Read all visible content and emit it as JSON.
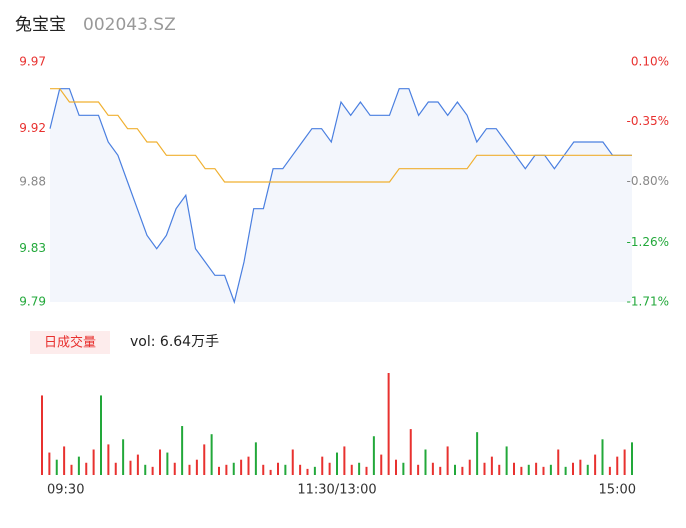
{
  "chart_data": [
    {
      "type": "line",
      "title": "兔宝宝",
      "subtitle": "002043.SZ",
      "x": [
        0,
        4,
        8,
        12,
        16,
        20,
        24,
        28,
        32,
        36,
        40,
        44,
        48,
        52,
        56,
        60,
        64,
        68,
        72,
        76,
        80,
        84,
        88,
        92,
        96,
        100,
        104,
        108,
        112,
        116,
        120,
        124,
        128,
        132,
        136,
        140,
        144,
        148,
        152,
        156,
        160,
        164,
        168,
        172,
        176,
        180,
        184,
        188,
        192,
        196,
        200,
        204,
        208,
        212,
        216,
        220,
        224,
        228,
        232,
        236,
        240
      ],
      "xlim": [
        0,
        240
      ],
      "ylim": [
        9.79,
        9.97
      ],
      "yticks": [
        9.97,
        9.92,
        9.88,
        9.83,
        9.79
      ],
      "ytick_colors": [
        "#e8312f",
        "#e8312f",
        "#888888",
        "#22a83a",
        "#22a83a"
      ],
      "y2lim": [
        -1.71,
        0.1
      ],
      "y2ticks": [
        {
          "value": 0.1,
          "label": "0.10%"
        },
        {
          "value": -0.35,
          "label": "-0.35%"
        },
        {
          "value": -0.8,
          "label": "-0.80%"
        },
        {
          "value": -1.26,
          "label": "-1.26%"
        },
        {
          "value": -1.71,
          "label": "-1.71%"
        }
      ],
      "area_color": "#f3f6fc",
      "series": [
        {
          "color": "#4a7fe0",
          "fill": true,
          "values": [
            9.92,
            9.95,
            9.95,
            9.93,
            9.93,
            9.93,
            9.91,
            9.9,
            9.88,
            9.86,
            9.84,
            9.83,
            9.84,
            9.86,
            9.87,
            9.83,
            9.82,
            9.81,
            9.81,
            9.79,
            9.82,
            9.86,
            9.86,
            9.89,
            9.89,
            9.9,
            9.91,
            9.92,
            9.92,
            9.91,
            9.94,
            9.93,
            9.94,
            9.93,
            9.93,
            9.93,
            9.95,
            9.95,
            9.93,
            9.94,
            9.94,
            9.93,
            9.94,
            9.93,
            9.91,
            9.92,
            9.92,
            9.91,
            9.9,
            9.89,
            9.9,
            9.9,
            9.89,
            9.9,
            9.91,
            9.91,
            9.91,
            9.91,
            9.9,
            9.9,
            9.9
          ]
        },
        {
          "color": "#f0b030",
          "fill": false,
          "values": [
            9.95,
            9.95,
            9.94,
            9.94,
            9.94,
            9.94,
            9.93,
            9.93,
            9.92,
            9.92,
            9.91,
            9.91,
            9.9,
            9.9,
            9.9,
            9.9,
            9.89,
            9.89,
            9.88,
            9.88,
            9.88,
            9.88,
            9.88,
            9.88,
            9.88,
            9.88,
            9.88,
            9.88,
            9.88,
            9.88,
            9.88,
            9.88,
            9.88,
            9.88,
            9.88,
            9.88,
            9.89,
            9.89,
            9.89,
            9.89,
            9.89,
            9.89,
            9.89,
            9.89,
            9.9,
            9.9,
            9.9,
            9.9,
            9.9,
            9.9,
            9.9,
            9.9,
            9.9,
            9.9,
            9.9,
            9.9,
            9.9,
            9.9,
            9.9,
            9.9,
            9.9
          ]
        }
      ]
    },
    {
      "type": "bar",
      "legend_label": "日成交量",
      "annotation": "vol: 6.64万手",
      "x": [
        0,
        3,
        6,
        9,
        12,
        15,
        18,
        21,
        24,
        27,
        30,
        33,
        36,
        39,
        42,
        45,
        48,
        51,
        54,
        57,
        60,
        63,
        66,
        69,
        72,
        75,
        78,
        81,
        84,
        87,
        90,
        93,
        96,
        99,
        102,
        105,
        108,
        111,
        114,
        117,
        120,
        123,
        126,
        129,
        132,
        135,
        138,
        141,
        144,
        147,
        150,
        153,
        156,
        159,
        162,
        165,
        168,
        171,
        174,
        177,
        180,
        183,
        186,
        189,
        192,
        195,
        198,
        201,
        204,
        207,
        210,
        213,
        216,
        219,
        222,
        225,
        228,
        231,
        234,
        237,
        240
      ],
      "values": [
        78,
        22,
        15,
        28,
        10,
        18,
        12,
        25,
        78,
        30,
        12,
        35,
        14,
        20,
        10,
        8,
        25,
        22,
        12,
        48,
        10,
        15,
        30,
        40,
        8,
        10,
        12,
        15,
        18,
        32,
        10,
        5,
        12,
        10,
        25,
        10,
        6,
        8,
        18,
        12,
        22,
        28,
        10,
        12,
        8,
        38,
        20,
        100,
        15,
        12,
        45,
        10,
        25,
        12,
        8,
        28,
        10,
        8,
        15,
        42,
        12,
        18,
        10,
        28,
        12,
        8,
        10,
        12,
        8,
        10,
        25,
        8,
        12,
        15,
        10,
        20,
        35,
        8,
        18,
        25,
        32
      ],
      "colors": [
        "#e8312f",
        "#e8312f",
        "#22a83a",
        "#e8312f",
        "#e8312f",
        "#22a83a",
        "#e8312f",
        "#e8312f",
        "#22a83a",
        "#e8312f",
        "#e8312f",
        "#22a83a",
        "#e8312f",
        "#e8312f",
        "#22a83a",
        "#e8312f",
        "#e8312f",
        "#22a83a",
        "#e8312f",
        "#22a83a",
        "#e8312f",
        "#e8312f",
        "#e8312f",
        "#22a83a",
        "#e8312f",
        "#e8312f",
        "#22a83a",
        "#e8312f",
        "#e8312f",
        "#22a83a",
        "#e8312f",
        "#e8312f",
        "#e8312f",
        "#22a83a",
        "#e8312f",
        "#e8312f",
        "#e8312f",
        "#22a83a",
        "#e8312f",
        "#e8312f",
        "#22a83a",
        "#e8312f",
        "#e8312f",
        "#22a83a",
        "#e8312f",
        "#22a83a",
        "#e8312f",
        "#e8312f",
        "#e8312f",
        "#22a83a",
        "#e8312f",
        "#e8312f",
        "#22a83a",
        "#e8312f",
        "#e8312f",
        "#e8312f",
        "#22a83a",
        "#e8312f",
        "#e8312f",
        "#22a83a",
        "#e8312f",
        "#e8312f",
        "#e8312f",
        "#22a83a",
        "#e8312f",
        "#e8312f",
        "#22a83a",
        "#e8312f",
        "#e8312f",
        "#22a83a",
        "#e8312f",
        "#22a83a",
        "#e8312f",
        "#e8312f",
        "#22a83a",
        "#e8312f",
        "#22a83a",
        "#e8312f",
        "#e8312f",
        "#e8312f",
        "#22a83a"
      ],
      "xlim": [
        0,
        240
      ],
      "ylim": [
        0,
        100
      ],
      "xticks": [
        {
          "value": 0,
          "label": "09:30"
        },
        {
          "value": 120,
          "label": "11:30/13:00"
        },
        {
          "value": 240,
          "label": "15:00"
        }
      ]
    }
  ]
}
